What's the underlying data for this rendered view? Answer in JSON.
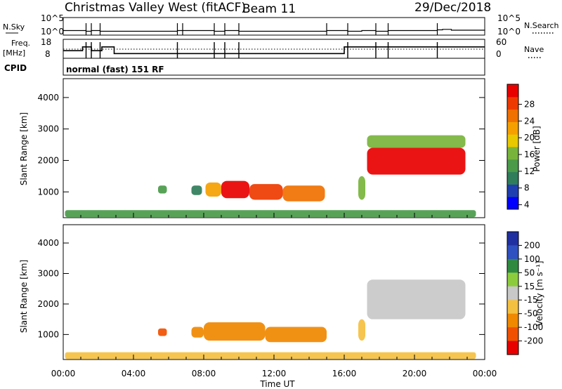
{
  "chart_data": [
    {
      "type": "line",
      "panel": "sky-noise",
      "title": "Christmas Valley West (fitACF)",
      "beam": "Beam 11",
      "date": "29/Dec/2018",
      "left_label": "N.Sky",
      "right_label": "N.Search",
      "left_ticks": [
        "10^5",
        "10^0"
      ],
      "right_ticks": [
        "10^5",
        "10^0"
      ],
      "series": [
        {
          "x": [
            0.0,
            1.3,
            1.6,
            2.1,
            6.5,
            8.6,
            9.2,
            10.0,
            15.0,
            16.2,
            17.0,
            17.8,
            18.5,
            21.3,
            21.6,
            22.1,
            24.0
          ],
          "y": [
            0.18,
            0.14,
            0.18,
            0.14,
            0.18,
            0.14,
            0.18,
            0.14,
            0.18,
            0.14,
            0.18,
            0.14,
            0.18,
            0.22,
            0.25,
            0.2,
            0.18
          ]
        }
      ]
    },
    {
      "type": "line",
      "panel": "frequency",
      "left_label": "Freq.",
      "left_unit": "[MHz]",
      "right_label": "Nave",
      "left_ticks": [
        "18",
        "8"
      ],
      "right_ticks": [
        "60",
        "0"
      ],
      "series": [
        {
          "x": [
            0.0,
            1.1,
            1.6,
            2.2,
            2.9,
            15.0,
            16.0,
            24.0
          ],
          "y": [
            12,
            14,
            12,
            14,
            10.5,
            10.5,
            14,
            14
          ]
        }
      ]
    },
    {
      "type": "heatmap",
      "panel": "power",
      "cpid_label": "CPID",
      "cpid_text": "normal (fast) 151 RF",
      "ylabel": "Slant Range [km]",
      "y_ticks": [
        "4000",
        "3000",
        "2000",
        "1000"
      ],
      "ylim": [
        180,
        4600
      ],
      "colorbar_label": "Power [dB]",
      "colorbar_ticks": [
        "28",
        "24",
        "20",
        "16",
        "12",
        "8",
        "4"
      ],
      "colorbar_colors": [
        "#0000ff",
        "#1f3fb0",
        "#2f7d5a",
        "#4a9a4a",
        "#78b43c",
        "#e8c800",
        "#f5a000",
        "#f07000",
        "#ee3a00",
        "#e80000"
      ],
      "blobs": [
        {
          "x0": 5.4,
          "x1": 5.9,
          "r0": 950,
          "r1": 1200,
          "level": 3
        },
        {
          "x0": 7.3,
          "x1": 7.9,
          "r0": 900,
          "r1": 1200,
          "level": 2
        },
        {
          "x0": 8.1,
          "x1": 9.0,
          "r0": 850,
          "r1": 1300,
          "level": 6
        },
        {
          "x0": 9.0,
          "x1": 10.6,
          "r0": 800,
          "r1": 1350,
          "level": 9
        },
        {
          "x0": 10.6,
          "x1": 12.5,
          "r0": 750,
          "r1": 1250,
          "level": 8
        },
        {
          "x0": 12.5,
          "x1": 14.9,
          "r0": 700,
          "r1": 1200,
          "level": 7
        },
        {
          "x0": 16.8,
          "x1": 17.2,
          "r0": 750,
          "r1": 1500,
          "level": 4
        },
        {
          "x0": 17.3,
          "x1": 22.9,
          "r0": 1550,
          "r1": 2400,
          "level": 9
        },
        {
          "x0": 17.3,
          "x1": 22.9,
          "r0": 2400,
          "r1": 2800,
          "level": 4
        },
        {
          "x0": 0.1,
          "x1": 23.5,
          "r0": 200,
          "r1": 420,
          "level": 3
        }
      ]
    },
    {
      "type": "heatmap",
      "panel": "velocity",
      "ylabel": "Slant Range [km]",
      "y_ticks": [
        "4000",
        "3000",
        "2000",
        "1000"
      ],
      "ylim": [
        180,
        4600
      ],
      "xlabel": "Time UT",
      "x_ticks": [
        "00:00",
        "04:00",
        "08:00",
        "12:00",
        "16:00",
        "20:00",
        "00:00"
      ],
      "colorbar_label": "Velocity [m s⁻¹]",
      "colorbar_ticks": [
        "200",
        "100",
        "50",
        "15",
        "-15",
        "-50",
        "-100",
        "-200"
      ],
      "colorbar_colors": [
        "#2030a0",
        "#2f50c0",
        "#2f8a40",
        "#8ccc3c",
        "#c8c8c8",
        "#f4c040",
        "#f08800",
        "#f05000",
        "#e80000"
      ],
      "blobs": [
        {
          "x0": 5.4,
          "x1": 5.9,
          "r0": 950,
          "r1": 1200,
          "vel": -110
        },
        {
          "x0": 7.3,
          "x1": 8.0,
          "r0": 900,
          "r1": 1250,
          "vel": -80
        },
        {
          "x0": 8.0,
          "x1": 11.5,
          "r0": 800,
          "r1": 1400,
          "vel": -100
        },
        {
          "x0": 11.5,
          "x1": 15.0,
          "r0": 750,
          "r1": 1250,
          "vel": -60
        },
        {
          "x0": 16.8,
          "x1": 17.2,
          "r0": 800,
          "r1": 1500,
          "vel": -20
        },
        {
          "x0": 17.3,
          "x1": 22.9,
          "r0": 1500,
          "r1": 2800,
          "vel": 0
        },
        {
          "x0": 0.1,
          "x1": 23.5,
          "r0": 200,
          "r1": 420,
          "vel": -40
        }
      ]
    }
  ]
}
